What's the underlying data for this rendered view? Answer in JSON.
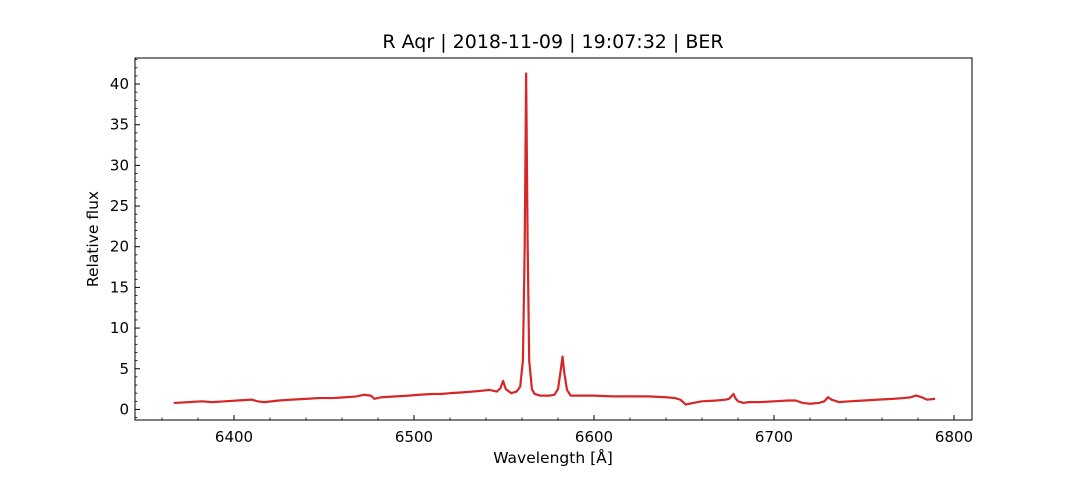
{
  "chart_data": {
    "type": "line",
    "title": "R Aqr | 2018-11-09 | 19:07:32 | BER",
    "xlabel": "Wavelength [Å]",
    "ylabel": "Relative flux",
    "xlim": [
      6345,
      6810
    ],
    "ylim": [
      -1.3,
      43.2
    ],
    "xticks": [
      6400,
      6500,
      6600,
      6700,
      6800
    ],
    "xtick_labels": [
      "6400",
      "6500",
      "6600",
      "6700",
      "6800"
    ],
    "yticks": [
      0,
      5,
      10,
      15,
      20,
      25,
      30,
      35,
      40
    ],
    "ytick_labels": [
      "0",
      "5",
      "10",
      "15",
      "20",
      "25",
      "30",
      "35",
      "40"
    ],
    "grid": false,
    "line_color": "#d62728",
    "series": [
      {
        "x": [
          6367,
          6375,
          6382,
          6388,
          6395,
          6402,
          6410,
          6413,
          6417,
          6425,
          6432,
          6440,
          6447,
          6455,
          6462,
          6468,
          6472,
          6476,
          6478,
          6482,
          6490,
          6497,
          6503,
          6510,
          6515,
          6520,
          6527,
          6533,
          6538,
          6542,
          6546,
          6548,
          6549.5,
          6551,
          6554,
          6557,
          6559,
          6560.5,
          6561.5,
          6562.3,
          6563.1,
          6564,
          6565.5,
          6567,
          6570,
          6575,
          6578,
          6580,
          6581.5,
          6582.5,
          6583.5,
          6585,
          6587,
          6592,
          6600,
          6610,
          6620,
          6630,
          6640,
          6645,
          6648,
          6651,
          6655,
          6660,
          6668,
          6673,
          6675,
          6677.5,
          6678.5,
          6680,
          6683,
          6686,
          6692,
          6700,
          6708,
          6712,
          6716,
          6720,
          6725,
          6728,
          6730,
          6732,
          6736,
          6742,
          6750,
          6758,
          6766,
          6772,
          6776,
          6779,
          6782,
          6785,
          6789
        ],
        "y": [
          0.8,
          0.9,
          1.0,
          0.9,
          1.0,
          1.1,
          1.2,
          1.0,
          0.9,
          1.1,
          1.2,
          1.3,
          1.4,
          1.4,
          1.5,
          1.6,
          1.8,
          1.7,
          1.3,
          1.5,
          1.6,
          1.7,
          1.8,
          1.9,
          1.9,
          2.0,
          2.1,
          2.2,
          2.3,
          2.4,
          2.2,
          2.6,
          3.5,
          2.5,
          2.0,
          2.2,
          2.8,
          6.0,
          20.0,
          41.3,
          21.0,
          6.0,
          2.5,
          1.9,
          1.7,
          1.7,
          1.8,
          2.5,
          4.8,
          6.5,
          4.5,
          2.4,
          1.7,
          1.7,
          1.7,
          1.6,
          1.6,
          1.6,
          1.5,
          1.4,
          1.2,
          0.6,
          0.8,
          1.0,
          1.1,
          1.2,
          1.3,
          1.9,
          1.4,
          1.0,
          0.8,
          0.9,
          0.9,
          1.0,
          1.1,
          1.1,
          0.8,
          0.7,
          0.8,
          1.0,
          1.5,
          1.2,
          0.9,
          1.0,
          1.1,
          1.2,
          1.3,
          1.4,
          1.5,
          1.7,
          1.5,
          1.2,
          1.3
        ]
      }
    ]
  }
}
